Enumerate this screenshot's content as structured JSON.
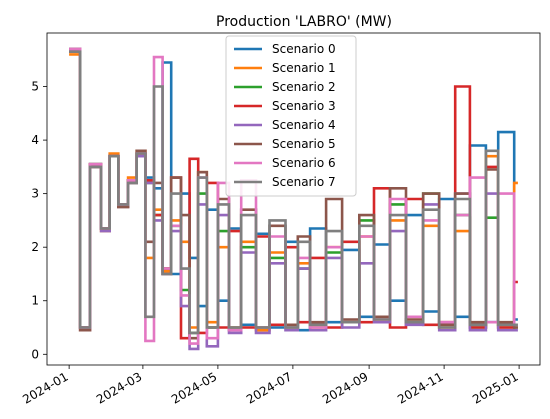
{
  "chart_data": {
    "type": "line",
    "step": true,
    "title": "Production 'LABRO' (MW)",
    "xlabel": "",
    "ylabel": "",
    "xlim": [
      "2023-12-14",
      "2025-01-18"
    ],
    "ylim": [
      -0.2,
      6.0
    ],
    "yticks": [
      0,
      1,
      2,
      3,
      4,
      5
    ],
    "xticks": [
      {
        "date": "2024-01-01",
        "label": "2024-01"
      },
      {
        "date": "2024-03-01",
        "label": "2024-03"
      },
      {
        "date": "2024-05-01",
        "label": "2024-05"
      },
      {
        "date": "2024-07-01",
        "label": "2024-07"
      },
      {
        "date": "2024-09-01",
        "label": "2024-09"
      },
      {
        "date": "2024-11-01",
        "label": "2024-11"
      },
      {
        "date": "2025-01-01",
        "label": "2025-01"
      }
    ],
    "legend": {
      "position": "top-center"
    },
    "grid": false,
    "colors": [
      "#1f77b4",
      "#ff7f0e",
      "#2ca02c",
      "#d62728",
      "#9467bd",
      "#8c564b",
      "#e377c2",
      "#7f7f7f"
    ],
    "series": [
      {
        "name": "Scenario 0",
        "x": [
          "2024-01-01",
          "2024-01-10",
          "2024-01-18",
          "2024-01-27",
          "2024-02-03",
          "2024-02-10",
          "2024-02-18",
          "2024-02-25",
          "2024-03-03",
          "2024-03-10",
          "2024-03-17",
          "2024-03-24",
          "2024-04-01",
          "2024-04-08",
          "2024-04-15",
          "2024-04-22",
          "2024-05-01",
          "2024-05-10",
          "2024-05-20",
          "2024-06-01",
          "2024-06-12",
          "2024-06-25",
          "2024-07-05",
          "2024-07-15",
          "2024-07-28",
          "2024-08-10",
          "2024-08-24",
          "2024-09-05",
          "2024-09-18",
          "2024-10-01",
          "2024-10-15",
          "2024-10-28",
          "2024-11-10",
          "2024-11-22",
          "2024-12-05",
          "2024-12-15",
          "2024-12-28"
        ],
        "y": [
          5.65,
          0.5,
          3.55,
          2.35,
          3.7,
          2.8,
          3.25,
          3.75,
          3.3,
          3.1,
          5.45,
          1.5,
          3.0,
          1.8,
          0.9,
          2.7,
          1.0,
          2.35,
          0.55,
          2.25,
          0.5,
          2.1,
          0.45,
          2.35,
          0.6,
          1.95,
          0.7,
          2.05,
          1.0,
          2.6,
          0.8,
          2.9,
          0.7,
          3.9,
          0.6,
          4.15,
          0.65
        ]
      },
      {
        "name": "Scenario 1",
        "x": [
          "2024-01-01",
          "2024-01-10",
          "2024-01-18",
          "2024-01-27",
          "2024-02-03",
          "2024-02-10",
          "2024-02-18",
          "2024-02-25",
          "2024-03-03",
          "2024-03-10",
          "2024-03-17",
          "2024-03-24",
          "2024-04-01",
          "2024-04-08",
          "2024-04-15",
          "2024-04-22",
          "2024-05-01",
          "2024-05-10",
          "2024-05-20",
          "2024-06-01",
          "2024-06-12",
          "2024-06-25",
          "2024-07-05",
          "2024-07-15",
          "2024-07-28",
          "2024-08-10",
          "2024-08-24",
          "2024-09-05",
          "2024-09-18",
          "2024-10-01",
          "2024-10-15",
          "2024-10-28",
          "2024-11-10",
          "2024-11-22",
          "2024-12-05",
          "2024-12-15",
          "2024-12-28"
        ],
        "y": [
          5.6,
          0.45,
          3.5,
          2.3,
          3.75,
          2.75,
          3.3,
          3.8,
          1.8,
          2.7,
          1.55,
          2.5,
          2.1,
          0.5,
          3.4,
          0.6,
          2.0,
          0.5,
          2.1,
          0.45,
          1.9,
          0.5,
          1.7,
          0.5,
          2.0,
          0.6,
          2.2,
          0.65,
          2.5,
          0.7,
          2.4,
          0.5,
          2.3,
          0.55,
          3.7,
          0.5,
          3.2
        ]
      },
      {
        "name": "Scenario 2",
        "x": [
          "2024-01-01",
          "2024-01-10",
          "2024-01-18",
          "2024-01-27",
          "2024-02-03",
          "2024-02-10",
          "2024-02-18",
          "2024-02-25",
          "2024-03-03",
          "2024-03-10",
          "2024-03-17",
          "2024-03-24",
          "2024-04-01",
          "2024-04-08",
          "2024-04-15",
          "2024-04-22",
          "2024-05-01",
          "2024-05-10",
          "2024-05-20",
          "2024-06-01",
          "2024-06-12",
          "2024-06-25",
          "2024-07-05",
          "2024-07-15",
          "2024-07-28",
          "2024-08-10",
          "2024-08-24",
          "2024-09-05",
          "2024-09-18",
          "2024-10-01",
          "2024-10-15",
          "2024-10-28",
          "2024-11-10",
          "2024-11-22",
          "2024-12-05",
          "2024-12-15",
          "2024-12-28"
        ],
        "y": [
          5.7,
          0.5,
          3.55,
          2.35,
          3.7,
          2.8,
          3.25,
          3.75,
          3.2,
          2.6,
          1.6,
          2.4,
          1.2,
          0.4,
          3.0,
          0.5,
          2.3,
          0.45,
          2.0,
          0.5,
          1.8,
          0.5,
          1.6,
          0.55,
          1.9,
          0.6,
          2.5,
          0.7,
          2.8,
          0.6,
          3.0,
          0.55,
          2.6,
          0.5,
          2.55,
          0.55,
          0.5
        ]
      },
      {
        "name": "Scenario 3",
        "x": [
          "2024-01-01",
          "2024-01-10",
          "2024-01-18",
          "2024-01-27",
          "2024-02-03",
          "2024-02-10",
          "2024-02-18",
          "2024-02-25",
          "2024-03-03",
          "2024-03-10",
          "2024-03-17",
          "2024-03-24",
          "2024-04-01",
          "2024-04-08",
          "2024-04-15",
          "2024-04-22",
          "2024-05-01",
          "2024-05-10",
          "2024-05-20",
          "2024-06-01",
          "2024-06-12",
          "2024-06-25",
          "2024-07-05",
          "2024-07-15",
          "2024-07-28",
          "2024-08-10",
          "2024-08-24",
          "2024-09-05",
          "2024-09-18",
          "2024-10-01",
          "2024-10-15",
          "2024-10-28",
          "2024-11-10",
          "2024-11-22",
          "2024-12-05",
          "2024-12-15",
          "2024-12-28"
        ],
        "y": [
          5.7,
          0.5,
          3.55,
          2.35,
          3.7,
          2.8,
          3.25,
          3.75,
          3.25,
          2.6,
          1.6,
          3.3,
          0.3,
          3.65,
          0.4,
          3.2,
          0.5,
          2.3,
          0.5,
          2.2,
          0.55,
          2.0,
          0.6,
          1.8,
          0.5,
          2.1,
          0.6,
          3.1,
          0.5,
          2.9,
          0.55,
          0.6,
          5.0,
          0.5,
          3.5,
          0.5,
          1.35
        ]
      },
      {
        "name": "Scenario 4",
        "x": [
          "2024-01-01",
          "2024-01-10",
          "2024-01-18",
          "2024-01-27",
          "2024-02-03",
          "2024-02-10",
          "2024-02-18",
          "2024-02-25",
          "2024-03-03",
          "2024-03-10",
          "2024-03-17",
          "2024-03-24",
          "2024-04-01",
          "2024-04-08",
          "2024-04-15",
          "2024-04-22",
          "2024-05-01",
          "2024-05-10",
          "2024-05-20",
          "2024-06-01",
          "2024-06-12",
          "2024-06-25",
          "2024-07-05",
          "2024-07-15",
          "2024-07-28",
          "2024-08-10",
          "2024-08-24",
          "2024-09-05",
          "2024-09-18",
          "2024-10-01",
          "2024-10-15",
          "2024-10-28",
          "2024-11-10",
          "2024-11-22",
          "2024-12-05",
          "2024-12-15",
          "2024-12-28"
        ],
        "y": [
          5.7,
          0.45,
          3.5,
          2.3,
          3.7,
          2.75,
          3.2,
          3.7,
          3.2,
          2.5,
          1.5,
          2.3,
          0.9,
          0.1,
          2.8,
          0.15,
          2.6,
          0.4,
          1.9,
          0.4,
          1.7,
          0.45,
          1.6,
          0.45,
          1.8,
          0.5,
          1.7,
          0.6,
          2.3,
          0.55,
          2.8,
          0.45,
          3.0,
          0.45,
          3.0,
          0.45,
          0.45
        ]
      },
      {
        "name": "Scenario 5",
        "x": [
          "2024-01-01",
          "2024-01-10",
          "2024-01-18",
          "2024-01-27",
          "2024-02-03",
          "2024-02-10",
          "2024-02-18",
          "2024-02-25",
          "2024-03-03",
          "2024-03-10",
          "2024-03-17",
          "2024-03-24",
          "2024-04-01",
          "2024-04-08",
          "2024-04-15",
          "2024-04-22",
          "2024-05-01",
          "2024-05-10",
          "2024-05-20",
          "2024-06-01",
          "2024-06-12",
          "2024-06-25",
          "2024-07-05",
          "2024-07-15",
          "2024-07-28",
          "2024-08-10",
          "2024-08-24",
          "2024-09-05",
          "2024-09-18",
          "2024-10-01",
          "2024-10-15",
          "2024-10-28",
          "2024-11-10",
          "2024-11-22",
          "2024-12-05",
          "2024-12-15",
          "2024-12-28"
        ],
        "y": [
          5.65,
          0.45,
          3.5,
          2.35,
          3.7,
          2.75,
          3.2,
          3.8,
          2.1,
          3.2,
          1.5,
          3.3,
          2.6,
          0.3,
          3.4,
          0.5,
          2.9,
          0.5,
          2.7,
          0.5,
          2.4,
          0.55,
          2.2,
          0.6,
          2.9,
          0.65,
          2.6,
          0.7,
          3.1,
          0.65,
          3.0,
          0.55,
          3.0,
          0.6,
          3.45,
          0.6,
          0.5
        ]
      },
      {
        "name": "Scenario 6",
        "x": [
          "2024-01-01",
          "2024-01-10",
          "2024-01-18",
          "2024-01-27",
          "2024-02-03",
          "2024-02-10",
          "2024-02-18",
          "2024-02-25",
          "2024-03-03",
          "2024-03-10",
          "2024-03-17",
          "2024-03-24",
          "2024-04-01",
          "2024-04-08",
          "2024-04-15",
          "2024-04-22",
          "2024-05-01",
          "2024-05-10",
          "2024-05-20",
          "2024-06-01",
          "2024-06-12",
          "2024-06-25",
          "2024-07-05",
          "2024-07-15",
          "2024-07-28",
          "2024-08-10",
          "2024-08-24",
          "2024-09-05",
          "2024-09-18",
          "2024-10-01",
          "2024-10-15",
          "2024-10-28",
          "2024-11-10",
          "2024-11-22",
          "2024-12-05",
          "2024-12-15",
          "2024-12-28"
        ],
        "y": [
          5.7,
          0.5,
          3.55,
          2.35,
          3.7,
          2.8,
          3.25,
          3.75,
          0.25,
          5.55,
          1.6,
          2.4,
          1.1,
          0.2,
          3.3,
          0.3,
          3.2,
          0.45,
          3.25,
          0.5,
          2.2,
          0.5,
          1.8,
          0.5,
          2.0,
          0.6,
          2.2,
          0.65,
          2.9,
          0.7,
          2.5,
          0.6,
          2.6,
          3.3,
          0.6,
          3.0,
          0.55
        ]
      },
      {
        "name": "Scenario 7",
        "x": [
          "2024-01-01",
          "2024-01-10",
          "2024-01-18",
          "2024-01-27",
          "2024-02-03",
          "2024-02-10",
          "2024-02-18",
          "2024-02-25",
          "2024-03-03",
          "2024-03-10",
          "2024-03-17",
          "2024-03-24",
          "2024-04-01",
          "2024-04-08",
          "2024-04-15",
          "2024-04-22",
          "2024-05-01",
          "2024-05-10",
          "2024-05-20",
          "2024-06-01",
          "2024-06-12",
          "2024-06-25",
          "2024-07-05",
          "2024-07-15",
          "2024-07-28",
          "2024-08-10",
          "2024-08-24",
          "2024-09-05",
          "2024-09-18",
          "2024-10-01",
          "2024-10-15",
          "2024-10-28",
          "2024-11-10",
          "2024-11-22",
          "2024-12-05",
          "2024-12-15",
          "2024-12-28"
        ],
        "y": [
          5.65,
          0.5,
          3.5,
          2.35,
          3.7,
          2.8,
          3.2,
          3.75,
          0.7,
          5.0,
          1.5,
          3.0,
          1.6,
          0.4,
          3.3,
          0.5,
          2.8,
          0.5,
          2.6,
          0.5,
          2.5,
          0.5,
          2.1,
          0.55,
          2.3,
          0.6,
          2.4,
          0.65,
          2.6,
          0.6,
          2.7,
          0.5,
          2.9,
          0.55,
          3.8,
          0.55,
          0.55
        ]
      }
    ]
  }
}
